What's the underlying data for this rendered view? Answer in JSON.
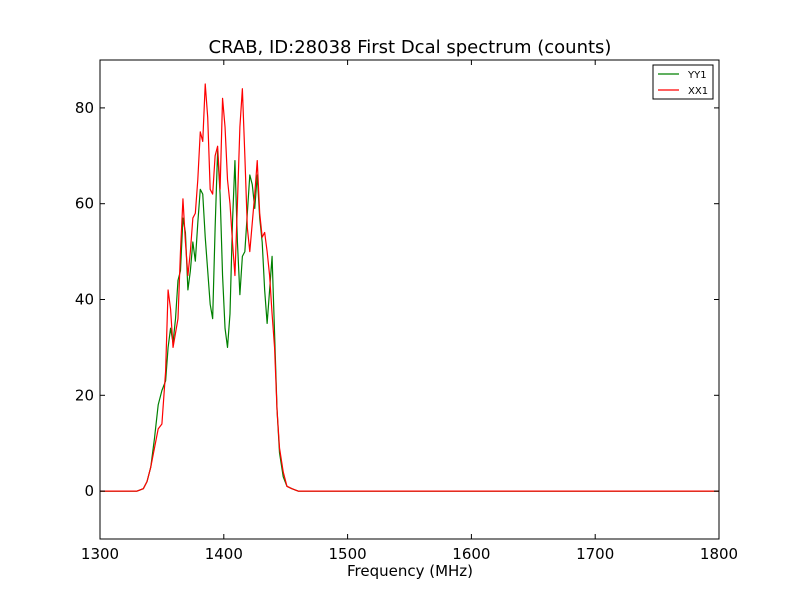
{
  "chart_data": {
    "type": "line",
    "title": "CRAB, ID:28038 First Dcal spectrum (counts)",
    "xlabel": "Frequency (MHz)",
    "ylabel": "",
    "xlim": [
      1300,
      1800
    ],
    "ylim": [
      -10,
      90
    ],
    "xticks": [
      1300,
      1400,
      1500,
      1600,
      1700,
      1800
    ],
    "yticks": [
      0,
      20,
      40,
      60,
      80
    ],
    "grid": false,
    "legend_position": "top-right",
    "series": [
      {
        "name": "YY1",
        "color": "#008000",
        "x": [
          1300,
          1320,
          1330,
          1335,
          1338,
          1341,
          1344,
          1347,
          1350,
          1353,
          1355,
          1357,
          1359,
          1361,
          1363,
          1365,
          1367,
          1369,
          1371,
          1373,
          1375,
          1377,
          1379,
          1381,
          1383,
          1385,
          1387,
          1389,
          1391,
          1393,
          1395,
          1397,
          1399,
          1401,
          1403,
          1405,
          1407,
          1409,
          1411,
          1413,
          1415,
          1417,
          1419,
          1421,
          1423,
          1425,
          1427,
          1429,
          1431,
          1433,
          1435,
          1437,
          1439,
          1441,
          1443,
          1445,
          1448,
          1451,
          1455,
          1460,
          1470,
          1500,
          1550,
          1600,
          1650,
          1700,
          1750,
          1800
        ],
        "values": [
          0,
          0,
          0,
          0.5,
          2,
          5,
          11,
          18,
          21,
          23,
          30,
          34,
          31,
          36,
          44,
          46,
          57,
          54,
          42,
          46,
          52,
          48,
          56,
          63,
          62,
          53,
          46,
          39,
          36,
          55,
          71,
          62,
          45,
          34,
          30,
          37,
          56,
          69,
          52,
          41,
          49,
          50,
          58,
          66,
          64,
          59,
          66,
          57,
          52,
          42,
          35,
          42,
          49,
          33,
          17,
          8,
          3,
          1,
          0.5,
          0,
          0,
          0,
          0,
          0,
          0,
          0,
          0,
          0
        ]
      },
      {
        "name": "XX1",
        "color": "#ff0000",
        "x": [
          1300,
          1320,
          1330,
          1335,
          1338,
          1341,
          1344,
          1347,
          1350,
          1353,
          1355,
          1357,
          1359,
          1361,
          1363,
          1365,
          1367,
          1369,
          1371,
          1373,
          1375,
          1377,
          1379,
          1381,
          1383,
          1385,
          1387,
          1389,
          1391,
          1393,
          1395,
          1397,
          1399,
          1401,
          1403,
          1405,
          1407,
          1409,
          1411,
          1413,
          1415,
          1417,
          1419,
          1421,
          1423,
          1425,
          1427,
          1429,
          1431,
          1433,
          1435,
          1437,
          1439,
          1441,
          1443,
          1445,
          1448,
          1451,
          1455,
          1460,
          1470,
          1500,
          1550,
          1600,
          1650,
          1700,
          1750,
          1800
        ],
        "values": [
          0,
          0,
          0,
          0.5,
          2,
          5,
          9,
          13,
          14,
          25,
          42,
          38,
          30,
          33,
          36,
          50,
          61,
          52,
          45,
          50,
          57,
          58,
          65,
          75,
          73,
          85,
          78,
          63,
          62,
          70,
          72,
          63,
          82,
          76,
          65,
          60,
          52,
          45,
          60,
          76,
          84,
          70,
          55,
          50,
          56,
          62,
          69,
          58,
          53,
          54,
          50,
          45,
          37,
          30,
          17,
          9,
          4,
          1,
          0.5,
          0,
          0,
          0,
          0,
          0,
          0,
          0,
          0,
          0
        ]
      }
    ]
  }
}
